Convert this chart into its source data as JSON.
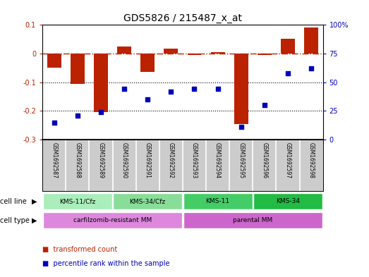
{
  "title": "GDS5826 / 215487_x_at",
  "samples": [
    "GSM1692587",
    "GSM1692588",
    "GSM1692589",
    "GSM1692590",
    "GSM1692591",
    "GSM1692592",
    "GSM1692593",
    "GSM1692594",
    "GSM1692595",
    "GSM1692596",
    "GSM1692597",
    "GSM1692598"
  ],
  "bar_values": [
    -0.048,
    -0.105,
    -0.205,
    0.025,
    -0.065,
    0.018,
    -0.005,
    0.005,
    -0.245,
    -0.005,
    0.052,
    0.09
  ],
  "scatter_values_pct": [
    15,
    21,
    24,
    44,
    35,
    42,
    44,
    44,
    11,
    30,
    58,
    62
  ],
  "bar_color": "#bb2200",
  "scatter_color": "#0000bb",
  "ylim_left": [
    -0.3,
    0.1
  ],
  "ylim_right": [
    0,
    100
  ],
  "yticks_left": [
    -0.3,
    -0.2,
    -0.1,
    0.0,
    0.1
  ],
  "ytick_labels_left": [
    "-0.3",
    "-0.2",
    "-0.1",
    "0",
    "0.1"
  ],
  "yticks_right": [
    0,
    25,
    50,
    75,
    100
  ],
  "ytick_labels_right": [
    "0",
    "25",
    "50",
    "75",
    "100%"
  ],
  "hline_y": 0.0,
  "dotted_lines": [
    -0.1,
    -0.2
  ],
  "cell_line_groups": [
    {
      "label": "KMS-11/Cfz",
      "start": 0,
      "end": 3,
      "color": "#aaeebb"
    },
    {
      "label": "KMS-34/Cfz",
      "start": 3,
      "end": 6,
      "color": "#88dd99"
    },
    {
      "label": "KMS-11",
      "start": 6,
      "end": 9,
      "color": "#44cc66"
    },
    {
      "label": "KMS-34",
      "start": 9,
      "end": 12,
      "color": "#22bb44"
    }
  ],
  "cell_type_groups": [
    {
      "label": "carfilzomib-resistant MM",
      "start": 0,
      "end": 6,
      "color": "#dd88dd"
    },
    {
      "label": "parental MM",
      "start": 6,
      "end": 12,
      "color": "#cc66cc"
    }
  ],
  "cell_line_label": "cell line",
  "cell_type_label": "cell type",
  "legend_items": [
    {
      "label": "transformed count",
      "color": "#bb2200"
    },
    {
      "label": "percentile rank within the sample",
      "color": "#0000bb"
    }
  ],
  "background_color": "#ffffff",
  "xlabel_bg": "#cccccc",
  "title_fontsize": 10,
  "tick_fontsize": 7,
  "bar_width": 0.6
}
